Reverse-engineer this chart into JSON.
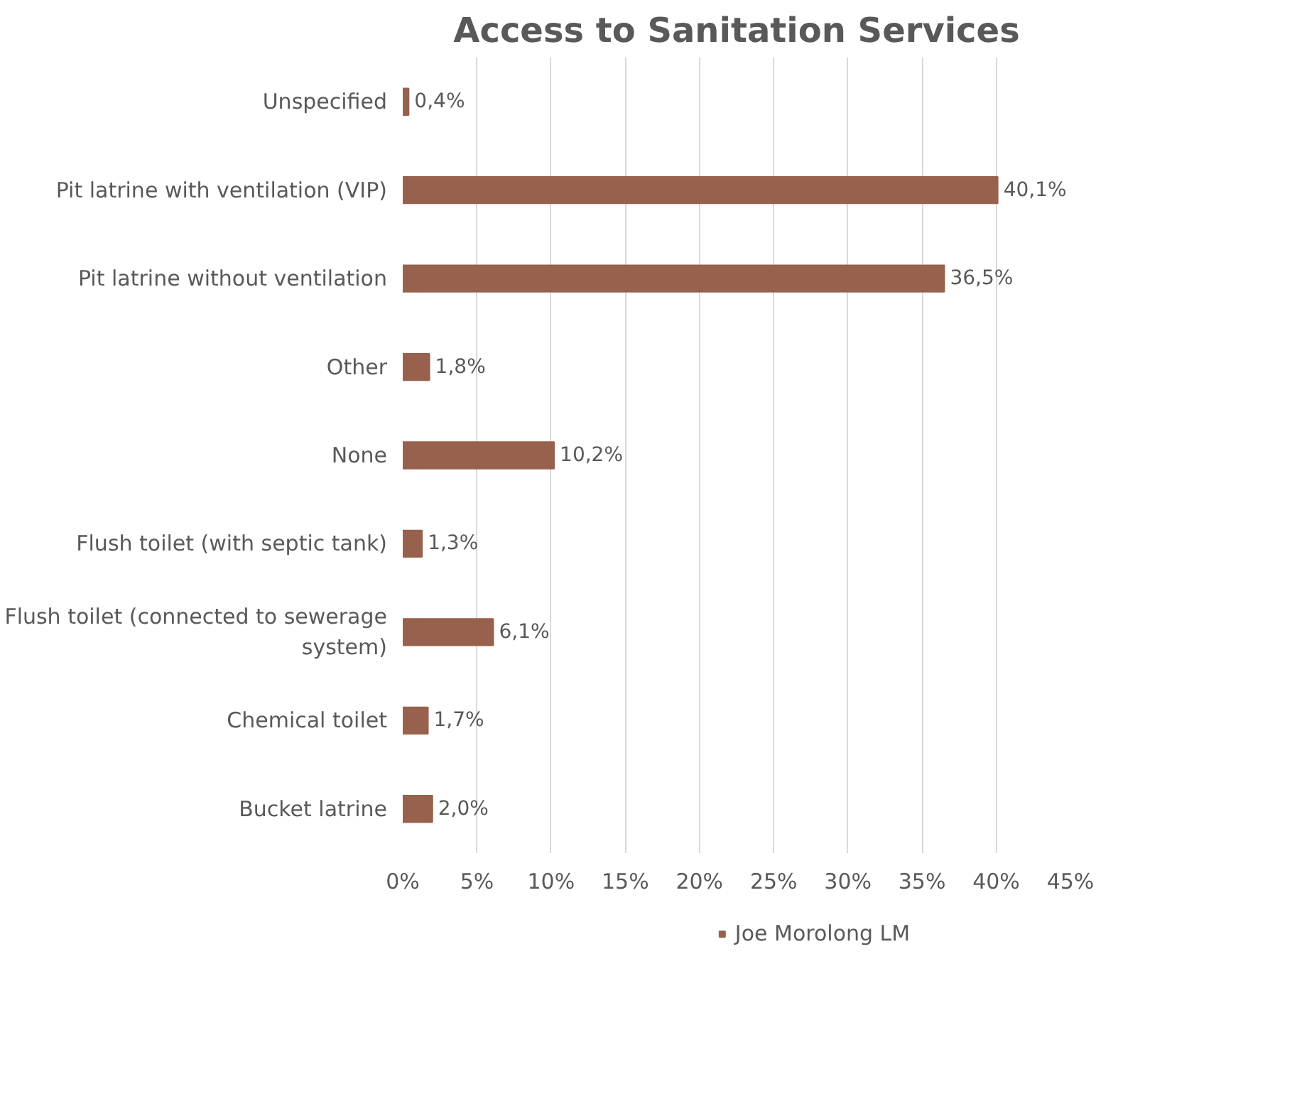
{
  "chart_data": {
    "type": "bar",
    "orientation": "horizontal",
    "title": "Access to Sanitation Services",
    "categories": [
      "Unspecified",
      "Pit latrine with ventilation (VIP)",
      "Pit latrine without ventilation",
      "Other",
      "None",
      "Flush toilet (with septic tank)",
      "Flush toilet (connected to sewerage system)",
      "Chemical toilet",
      "Bucket latrine"
    ],
    "series": [
      {
        "name": "Joe Morolong LM",
        "color": "#97614d",
        "values": [
          0.4,
          40.1,
          36.5,
          1.8,
          10.2,
          1.3,
          6.1,
          1.7,
          2.0
        ],
        "value_labels": [
          "0,4%",
          "40,1%",
          "36,5%",
          "1,8%",
          "10,2%",
          "1,3%",
          "6,1%",
          "1,7%",
          "2,0%"
        ]
      }
    ],
    "xlim": [
      0,
      45
    ],
    "xticks": [
      {
        "value": 0,
        "label": "0%"
      },
      {
        "value": 5,
        "label": "5%"
      },
      {
        "value": 10,
        "label": "10%"
      },
      {
        "value": 15,
        "label": "15%"
      },
      {
        "value": 20,
        "label": "20%"
      },
      {
        "value": 25,
        "label": "25%"
      },
      {
        "value": 30,
        "label": "30%"
      },
      {
        "value": 35,
        "label": "35%"
      },
      {
        "value": 40,
        "label": "40%"
      },
      {
        "value": 45,
        "label": "45%"
      }
    ],
    "grid": "x",
    "legend": "bottom"
  }
}
